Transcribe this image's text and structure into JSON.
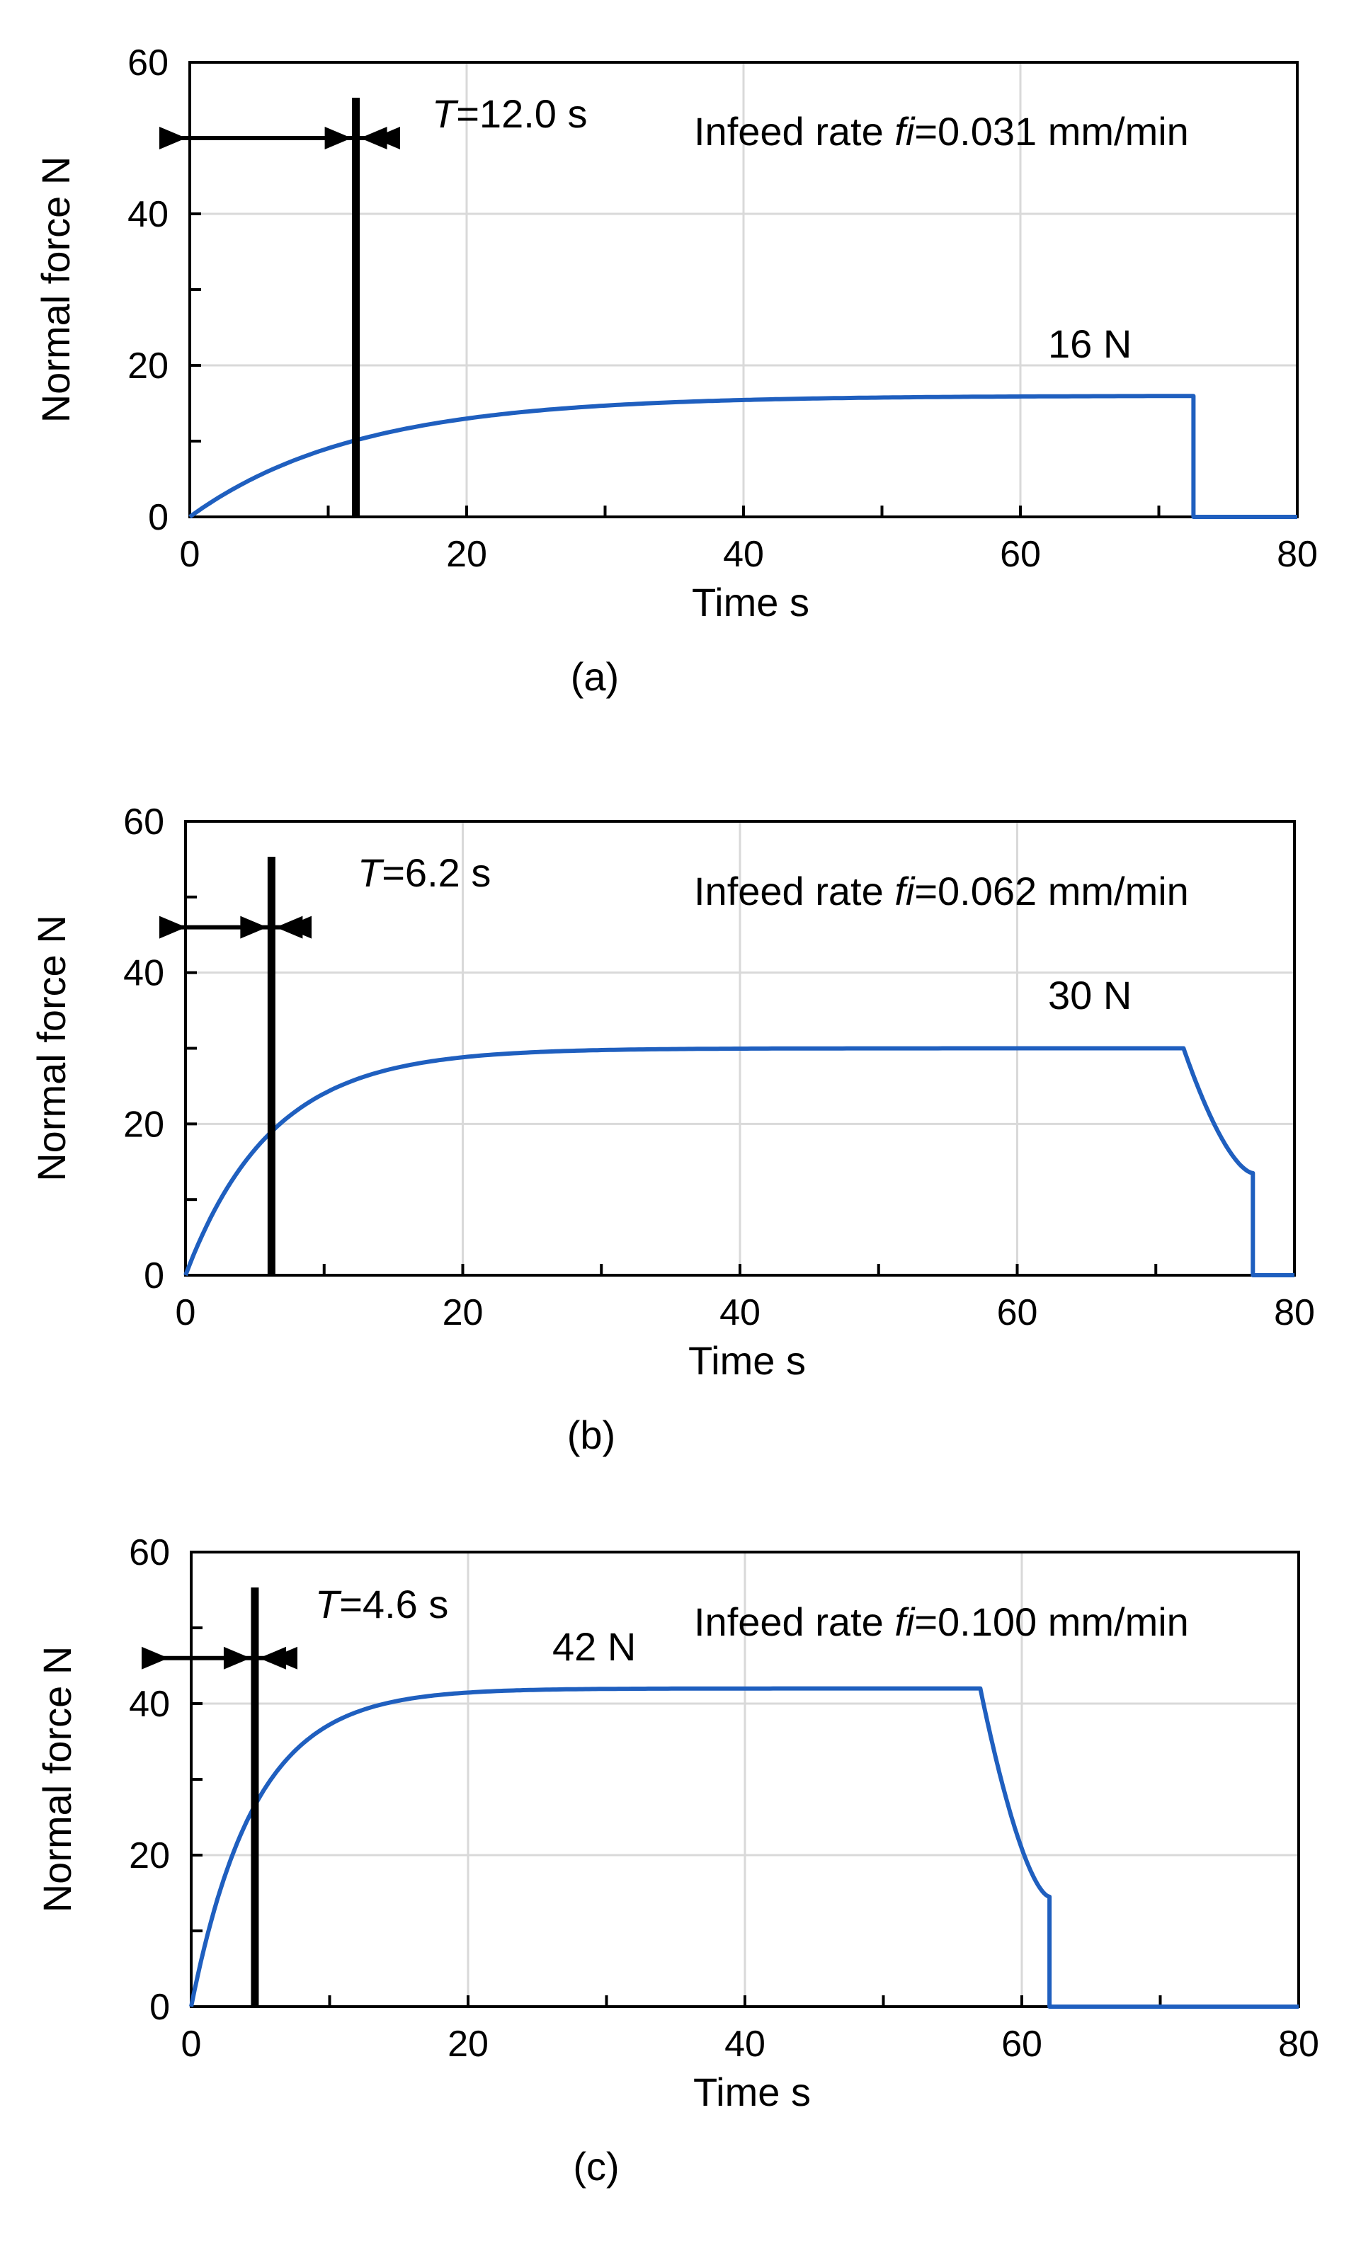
{
  "chart_data": [
    {
      "id": "a",
      "type": "line",
      "caption": "(a)",
      "xlabel": "Time s",
      "ylabel": "Normal force N",
      "xlim": [
        0,
        80
      ],
      "ylim": [
        0,
        60
      ],
      "xticks": [
        "0",
        "20",
        "40",
        "60",
        "80"
      ],
      "yticks": [
        "0",
        "20",
        "40",
        "60"
      ],
      "grid": true,
      "series_color": "#1f5fbf",
      "time_constant": {
        "T_label": "T",
        "value_text": "=12.0 s",
        "T_s": 12.0,
        "arrow_level_N": 50
      },
      "infeed": {
        "prefix": "Infeed rate ",
        "symbol": "fi",
        "value": "=0.031 mm/min"
      },
      "steady_label": "16 N",
      "model": {
        "F_max": 16,
        "T": 12.0,
        "t_end": 72.5,
        "F_end_step": 16,
        "decay_end": 72.5
      },
      "series": [
        {
          "name": "Normal force",
          "x": [
            0,
            6,
            12,
            20,
            30,
            40,
            50,
            60,
            72.5,
            72.5,
            80
          ],
          "y": [
            0,
            6.3,
            10.1,
            13.0,
            14.8,
            15.5,
            15.8,
            15.9,
            16.0,
            0,
            0
          ]
        }
      ]
    },
    {
      "id": "b",
      "type": "line",
      "caption": "(b)",
      "xlabel": "Time s",
      "ylabel": "Normal force N",
      "xlim": [
        0,
        80
      ],
      "ylim": [
        0,
        60
      ],
      "xticks": [
        "0",
        "20",
        "40",
        "60",
        "80"
      ],
      "yticks": [
        "0",
        "20",
        "40",
        "60"
      ],
      "grid": true,
      "series_color": "#1f5fbf",
      "time_constant": {
        "T_label": "T",
        "value_text": "=6.2 s",
        "T_s": 6.2,
        "arrow_level_N": 46
      },
      "infeed": {
        "prefix": "Infeed rate ",
        "symbol": "fi",
        "value": "=0.062 mm/min"
      },
      "steady_label": "30 N",
      "model": {
        "F_max": 30,
        "T": 6.2,
        "t_end": 72,
        "decay_to": 13.5,
        "decay_end": 77
      },
      "series": [
        {
          "name": "Normal force",
          "x": [
            0,
            3,
            6.2,
            10,
            20,
            40,
            72,
            75,
            77,
            77,
            80
          ],
          "y": [
            0,
            11.3,
            19.0,
            24.0,
            29.0,
            30.0,
            30.0,
            21.0,
            13.5,
            0,
            0
          ]
        }
      ]
    },
    {
      "id": "c",
      "type": "line",
      "caption": "(c)",
      "xlabel": "Time s",
      "ylabel": "Normal force N",
      "xlim": [
        0,
        80
      ],
      "ylim": [
        0,
        60
      ],
      "xticks": [
        "0",
        "20",
        "40",
        "60",
        "80"
      ],
      "yticks": [
        "0",
        "20",
        "40",
        "60"
      ],
      "grid": true,
      "series_color": "#1f5fbf",
      "time_constant": {
        "T_label": "T",
        "value_text": "=4.6 s",
        "T_s": 4.6,
        "arrow_level_N": 46
      },
      "infeed": {
        "prefix": "Infeed rate ",
        "symbol": "fi",
        "value": "=0.100 mm/min"
      },
      "steady_label": "42 N",
      "model": {
        "F_max": 42,
        "T": 4.6,
        "t_end": 57,
        "decay_to": 14.5,
        "decay_end": 62
      },
      "series": [
        {
          "name": "Normal force",
          "x": [
            0,
            2,
            4.6,
            10,
            20,
            40,
            57,
            60,
            62,
            62,
            80
          ],
          "y": [
            0,
            14.6,
            26.5,
            37.2,
            41.6,
            42.0,
            42.0,
            25.0,
            14.5,
            0,
            0
          ]
        }
      ]
    }
  ]
}
